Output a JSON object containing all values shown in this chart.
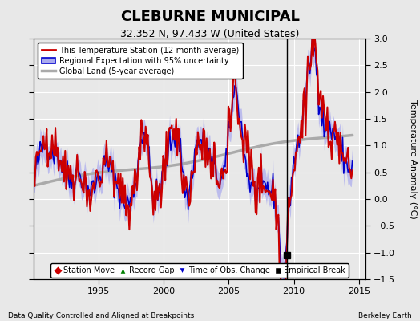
{
  "title": "CLEBURNE MUNICIPAL",
  "subtitle": "32.352 N, 97.433 W (United States)",
  "ylabel": "Temperature Anomaly (°C)",
  "xlabel_note": "Data Quality Controlled and Aligned at Breakpoints",
  "source_note": "Berkeley Earth",
  "xlim": [
    1990,
    2015.5
  ],
  "ylim": [
    -1.5,
    3.0
  ],
  "yticks": [
    -1.5,
    -1.0,
    -0.5,
    0.0,
    0.5,
    1.0,
    1.5,
    2.0,
    2.5,
    3.0
  ],
  "xticks": [
    1995,
    2000,
    2005,
    2010,
    2015
  ],
  "background_color": "#e8e8e8",
  "plot_bg_color": "#e8e8e8",
  "red_line_color": "#cc0000",
  "blue_line_color": "#0000cc",
  "blue_fill_color": "#aaaaee",
  "gray_line_color": "#aaaaaa",
  "empirical_break_x": 2009.5,
  "empirical_break_y": -1.05,
  "vertical_line_x": 2009.5
}
